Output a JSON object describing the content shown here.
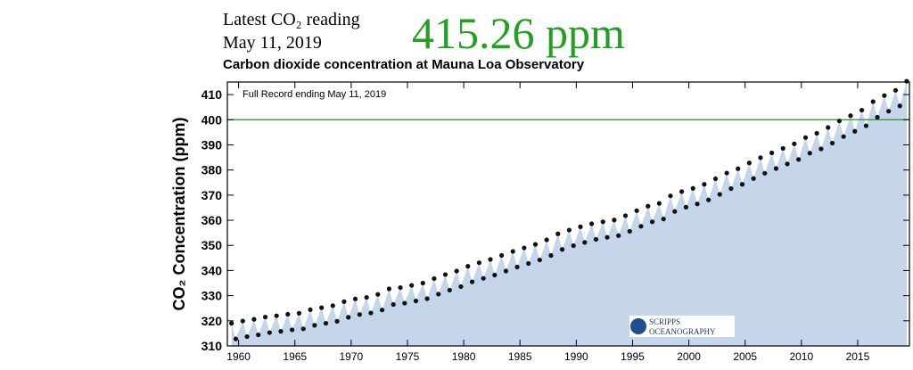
{
  "header": {
    "latest_label": "Latest CO₂ reading",
    "date": "May 11, 2019",
    "reading": "415.26 ppm"
  },
  "chart_data": {
    "type": "scatter",
    "title": "Carbon dioxide concentration at Mauna Loa Observatory",
    "annotation": "Full Record ending May 11, 2019",
    "y_label": "CO₂ Concentration (ppm)",
    "logo": {
      "line1": "SCRIPPS",
      "line2": "OCEANOGRAPHY"
    },
    "xlim": [
      1959,
      2019.6
    ],
    "ylim": [
      310,
      415
    ],
    "xticks": [
      1960,
      1965,
      1970,
      1975,
      1980,
      1985,
      1990,
      1995,
      2000,
      2005,
      2010,
      2015
    ],
    "yticks": [
      310,
      320,
      330,
      340,
      350,
      360,
      370,
      380,
      390,
      400,
      410
    ],
    "reference_line": {
      "value": 400,
      "color": "#2e8b2e"
    },
    "fill_color": "#c5d5ea",
    "series": [
      {
        "name": "CO₂",
        "color": "#111111",
        "x": [
          1959.37,
          1959.75,
          1960.37,
          1960.75,
          1961.37,
          1961.75,
          1962.37,
          1962.75,
          1963.37,
          1963.75,
          1964.37,
          1964.75,
          1965.37,
          1965.75,
          1966.37,
          1966.75,
          1967.37,
          1967.75,
          1968.37,
          1968.75,
          1969.37,
          1969.75,
          1970.37,
          1970.75,
          1971.37,
          1971.75,
          1972.37,
          1972.75,
          1973.37,
          1973.75,
          1974.37,
          1974.75,
          1975.37,
          1975.75,
          1976.37,
          1976.75,
          1977.37,
          1977.75,
          1978.37,
          1978.75,
          1979.37,
          1979.75,
          1980.37,
          1980.75,
          1981.37,
          1981.75,
          1982.37,
          1982.75,
          1983.37,
          1983.75,
          1984.37,
          1984.75,
          1985.37,
          1985.75,
          1986.37,
          1986.75,
          1987.37,
          1987.75,
          1988.37,
          1988.75,
          1989.37,
          1989.75,
          1990.37,
          1990.75,
          1991.37,
          1991.75,
          1992.37,
          1992.75,
          1993.37,
          1993.75,
          1994.37,
          1994.75,
          1995.37,
          1995.75,
          1996.37,
          1996.75,
          1997.37,
          1997.75,
          1998.37,
          1998.75,
          1999.37,
          1999.75,
          2000.37,
          2000.75,
          2001.37,
          2001.75,
          2002.37,
          2002.75,
          2003.37,
          2003.75,
          2004.37,
          2004.75,
          2005.37,
          2005.75,
          2006.37,
          2006.75,
          2007.37,
          2007.75,
          2008.37,
          2008.75,
          2009.37,
          2009.75,
          2010.37,
          2010.75,
          2011.37,
          2011.75,
          2012.37,
          2012.75,
          2013.37,
          2013.75,
          2014.37,
          2014.75,
          2015.37,
          2015.75,
          2016.37,
          2016.75,
          2017.37,
          2017.75,
          2018.37,
          2018.75,
          2019.36
        ],
        "values": [
          319.0,
          312.8,
          319.9,
          313.7,
          320.6,
          314.4,
          321.5,
          315.3,
          322.0,
          315.8,
          322.6,
          316.4,
          323.0,
          316.8,
          324.4,
          318.2,
          325.2,
          319.0,
          326.0,
          319.8,
          327.6,
          321.4,
          328.7,
          322.5,
          329.3,
          323.1,
          330.5,
          324.3,
          332.7,
          326.5,
          333.2,
          327.0,
          334.1,
          327.9,
          335.0,
          328.8,
          336.8,
          330.6,
          338.4,
          332.2,
          339.8,
          333.6,
          341.7,
          335.5,
          343.1,
          336.9,
          344.4,
          338.2,
          346.0,
          339.8,
          347.6,
          341.4,
          349.0,
          342.8,
          350.4,
          344.2,
          352.2,
          346.0,
          354.6,
          348.4,
          356.1,
          349.9,
          357.4,
          351.2,
          358.6,
          352.4,
          359.4,
          353.2,
          360.1,
          353.9,
          361.8,
          355.6,
          363.8,
          357.6,
          365.6,
          359.4,
          366.7,
          360.5,
          369.7,
          363.5,
          371.4,
          365.2,
          372.7,
          366.5,
          374.3,
          368.1,
          376.5,
          370.3,
          378.8,
          372.6,
          380.5,
          374.3,
          382.8,
          376.6,
          384.9,
          378.7,
          386.8,
          380.6,
          388.6,
          382.4,
          390.4,
          384.2,
          392.9,
          386.7,
          394.6,
          388.4,
          396.9,
          390.7,
          399.5,
          393.3,
          401.6,
          395.4,
          403.8,
          397.6,
          407.2,
          401.0,
          409.6,
          403.4,
          411.7,
          405.5,
          415.3
        ]
      }
    ]
  }
}
